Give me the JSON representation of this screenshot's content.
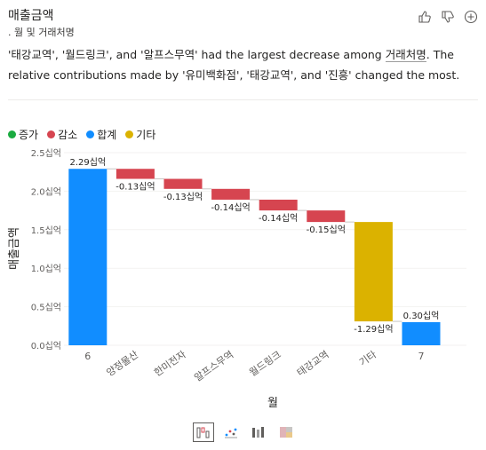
{
  "header": {
    "title": "매출금액",
    "subtitle": ". 월 및 거래처명"
  },
  "summary": {
    "part1": "'태강교역', '월드링크', and '알프스무역' had the largest decrease among ",
    "field": "거래처명",
    "part2": ". The relative contributions made by '유미백화점', '태강교역', and '진흥' changed the most."
  },
  "legend": [
    {
      "label": "증가",
      "color": "#1aab40"
    },
    {
      "label": "감소",
      "color": "#d64550"
    },
    {
      "label": "합계",
      "color": "#118dff"
    },
    {
      "label": "기타",
      "color": "#dbb200"
    }
  ],
  "chart_data": {
    "type": "waterfall",
    "categories": [
      "6",
      "양정물산",
      "한미전자",
      "알프스무역",
      "월드링크",
      "태강교역",
      "기타",
      "7"
    ],
    "values": [
      2.29,
      -0.13,
      -0.13,
      -0.14,
      -0.14,
      -0.15,
      -1.29,
      0.3
    ],
    "kinds": [
      "total",
      "decrease",
      "decrease",
      "decrease",
      "decrease",
      "decrease",
      "other",
      "total"
    ],
    "data_labels": [
      "2.29십억",
      "-0.13십억",
      "-0.13십억",
      "-0.14십억",
      "-0.14십억",
      "-0.15십억",
      "-1.29십억",
      "0.30십억"
    ],
    "yticks": [
      0,
      0.5,
      1.0,
      1.5,
      2.0,
      2.5
    ],
    "ytick_labels": [
      "0.0십억",
      "0.5십억",
      "1.0십억",
      "1.5십억",
      "2.0십억",
      "2.5십억"
    ],
    "ylim": [
      0,
      2.5
    ],
    "xlabel": "월",
    "ylabel": "매출금액",
    "colors": {
      "total": "#118dff",
      "decrease": "#d64550",
      "other": "#dbb200",
      "increase": "#1aab40"
    }
  },
  "actions": [
    {
      "icon": "thumbs-up-icon"
    },
    {
      "icon": "thumbs-down-icon"
    },
    {
      "icon": "add-icon"
    }
  ],
  "chart_types": [
    {
      "icon": "waterfall-chart-icon",
      "active": true
    },
    {
      "icon": "scatter-chart-icon",
      "active": false
    },
    {
      "icon": "column-chart-icon",
      "active": false
    },
    {
      "icon": "treemap-chart-icon",
      "active": false
    }
  ]
}
